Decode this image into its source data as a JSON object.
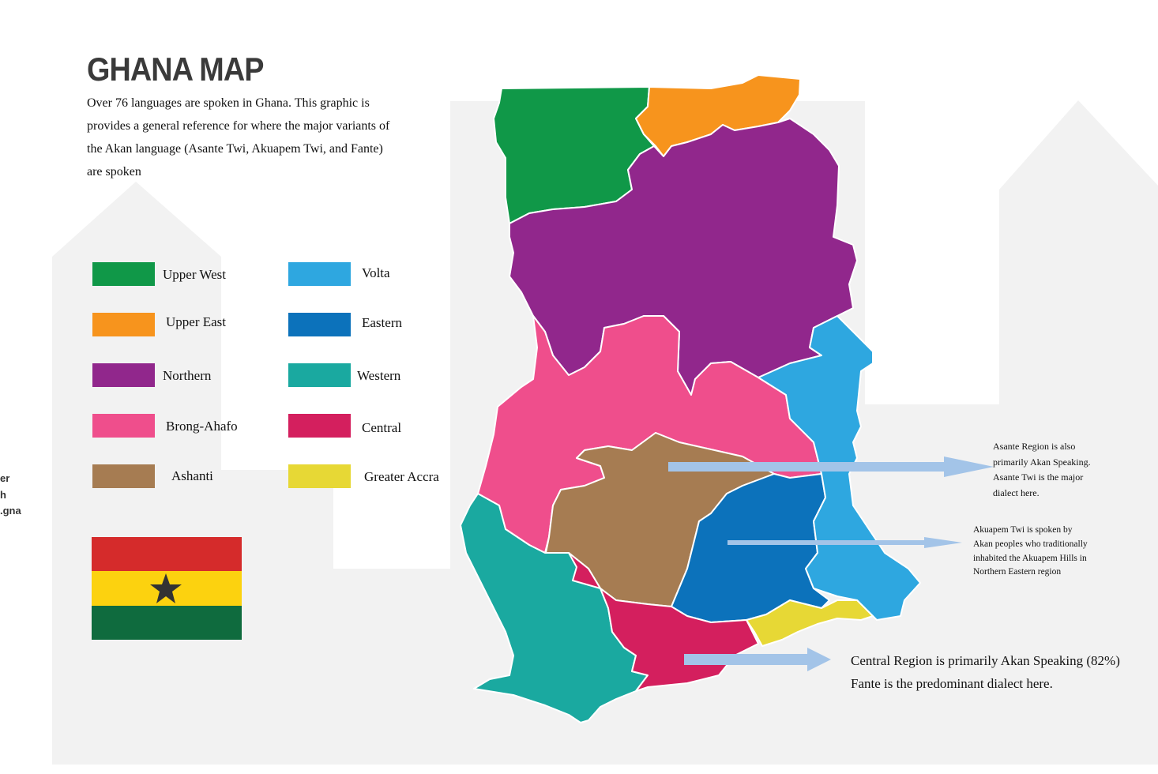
{
  "header": {
    "title": "GHANA MAP",
    "description": [
      "Over 76 languages are spoken in Ghana. This graphic is",
      "provides a general reference for where the major variants of",
      "the Akan language (Asante Twi, Akuapem Twi, and Fante)",
      "are spoken"
    ]
  },
  "legend": [
    "Upper West",
    "Upper East",
    "Northern",
    "Brong-Ahafo",
    "Ashanti",
    "Volta",
    "Eastern",
    "Western",
    "Central",
    "Greater Accra"
  ],
  "annotations": [
    [
      "Asante Region is also",
      "primarily Akan Speaking.",
      "Asante Twi is the major",
      "dialect here."
    ],
    [
      "Akuapem Twi is spoken by",
      "Akan peoples who traditionally",
      "inhabited the Akuapem Hills in",
      "Northern Eastern region"
    ],
    [
      "Central Region is primarily Akan Speaking (82%)",
      "Fante is the predominant dialect here."
    ]
  ],
  "edge_fragments": [
    "er",
    "h",
    ".gna"
  ]
}
